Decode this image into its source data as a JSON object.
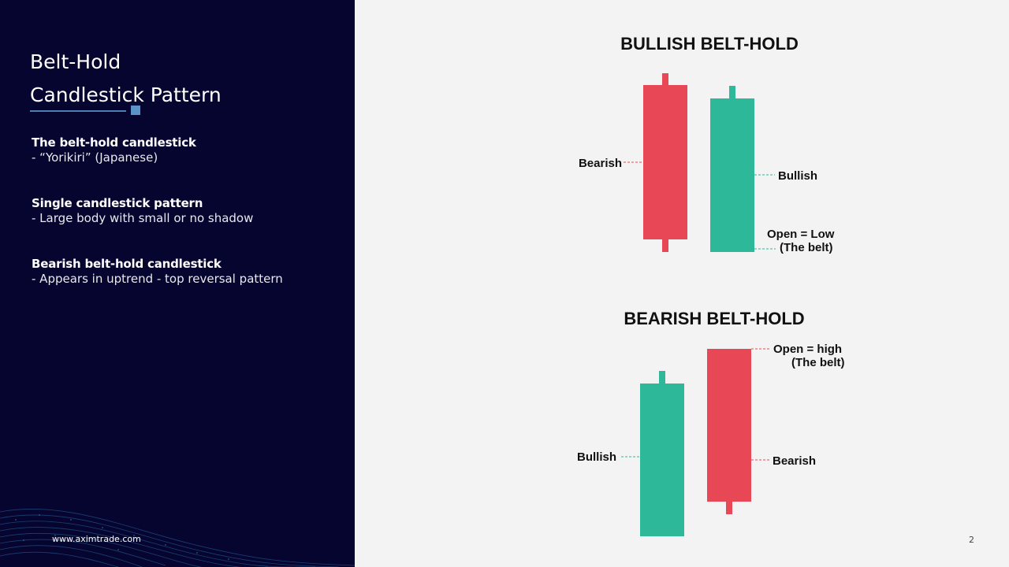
{
  "slide": {
    "title_line1": "Belt-Hold",
    "title_line2": "Candlestick Pattern",
    "sections": [
      {
        "heading": "The belt-hold candlestick",
        "sub": "- “Yorikiri” (Japanese)"
      },
      {
        "heading": "Single candlestick pattern",
        "sub": "- Large body with small or no shadow"
      },
      {
        "heading": "Bearish belt-hold candlestick",
        "sub": "- Appears in uptrend - top reversal pattern"
      }
    ],
    "website": "www.aximtrade.com",
    "page_number": "2"
  },
  "diagram": {
    "colors": {
      "bullish": "#2cb899",
      "bearish": "#e84855",
      "text": "#111111"
    },
    "bullish_belt_hold": {
      "title": "BULLISH BELT-HOLD",
      "label_bearish": "Bearish",
      "label_bullish": "Bullish",
      "label_open_line1": "Open = Low",
      "label_open_line2": "(The belt)"
    },
    "bearish_belt_hold": {
      "title": "BEARISH BELT-HOLD",
      "label_bullish": "Bullish",
      "label_bearish": "Bearish",
      "label_open_line1": "Open = high",
      "label_open_line2": "(The belt)"
    }
  }
}
